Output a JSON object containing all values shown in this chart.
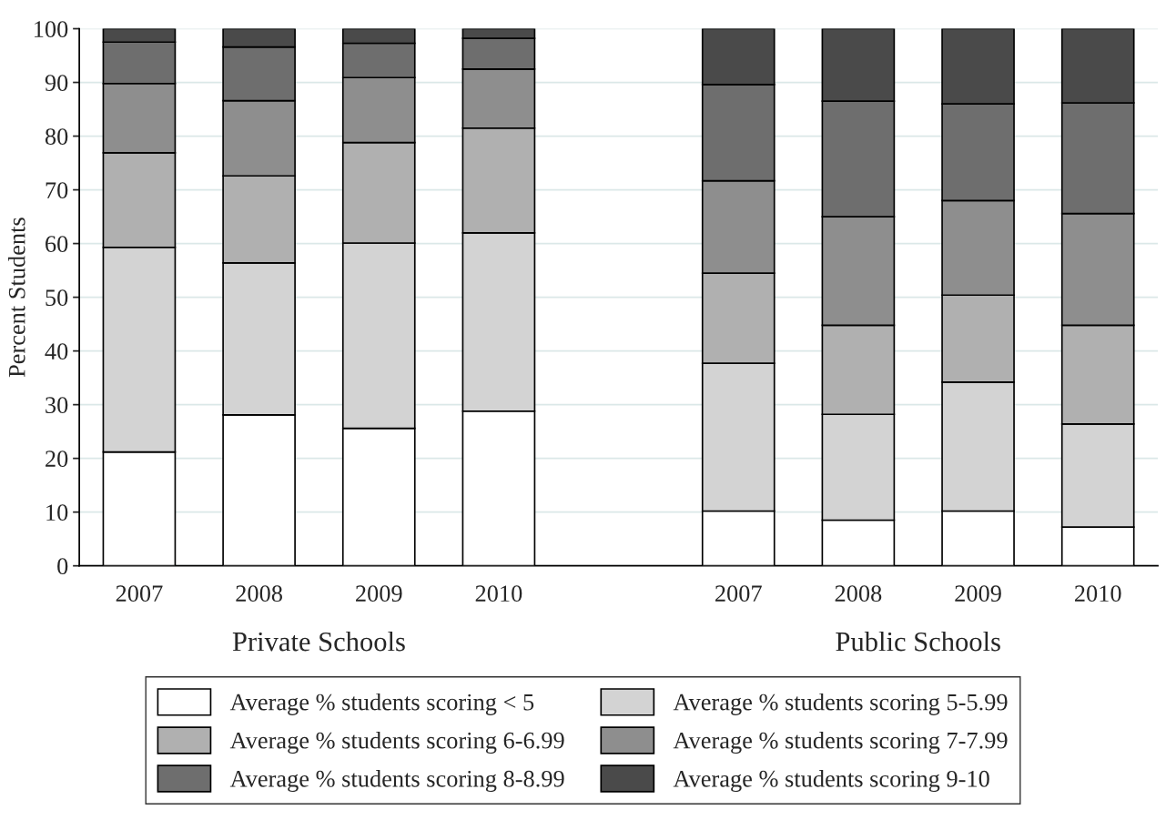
{
  "chart_data": {
    "type": "bar",
    "stacked": true,
    "ylabel": "Percent Students",
    "categories": [
      "2007",
      "2008",
      "2009",
      "2010",
      null,
      "2007",
      "2008",
      "2009",
      "2010"
    ],
    "series": [
      {
        "name": "Average % students scoring < 5",
        "color": "#ffffff",
        "values": [
          21.2,
          28.1,
          25.6,
          28.8,
          null,
          10.2,
          8.5,
          10.2,
          7.2
        ]
      },
      {
        "name": "Average % students scoring 5-5.99",
        "color": "#d3d3d3",
        "values": [
          38.1,
          28.3,
          34.5,
          33.2,
          null,
          27.5,
          19.7,
          24.0,
          19.2
        ]
      },
      {
        "name": "Average % students scoring 6-6.99",
        "color": "#b0b0b0",
        "values": [
          17.6,
          16.2,
          18.7,
          19.5,
          null,
          16.8,
          16.6,
          16.2,
          18.4
        ]
      },
      {
        "name": "Average % students scoring 7-7.99",
        "color": "#8e8e8e",
        "values": [
          12.9,
          14.0,
          12.1,
          11.0,
          null,
          17.2,
          20.2,
          17.6,
          20.8
        ]
      },
      {
        "name": "Average % students scoring 8-8.99",
        "color": "#6e6e6e",
        "values": [
          7.7,
          10.0,
          6.4,
          5.7,
          null,
          17.9,
          21.5,
          18.0,
          20.6
        ]
      },
      {
        "name": "Average % students scoring 9-10",
        "color": "#4a4a4a",
        "values": [
          2.5,
          3.4,
          2.7,
          1.8,
          null,
          10.4,
          13.5,
          14.0,
          13.8
        ]
      }
    ],
    "ylim": [
      0,
      100
    ],
    "yticks": [
      0,
      10,
      20,
      30,
      40,
      50,
      60,
      70,
      80,
      90,
      100
    ],
    "grid": "y",
    "legend": "bottom",
    "annotations": [
      "Private Schools",
      "Public Schools"
    ]
  }
}
